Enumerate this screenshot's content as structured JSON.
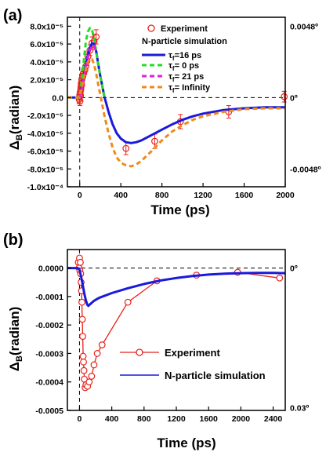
{
  "chart_data": [
    {
      "panel_label": "(a)",
      "type": "line",
      "xlabel": "Time (ps)",
      "ylabel": "Δ_B(radian)",
      "ylabel_main": "Δ",
      "ylabel_sub": "B",
      "ylabel_rest": "(radian)",
      "xlim": [
        -120,
        2000
      ],
      "ylim": [
        -0.0001,
        9e-05
      ],
      "x_ticks": [
        0,
        400,
        800,
        1200,
        1600,
        2000
      ],
      "x_tick_labels": [
        "0",
        "400",
        "800",
        "1200",
        "1600",
        "2000"
      ],
      "y_ticks": [
        8e-05,
        6e-05,
        4e-05,
        2e-05,
        0,
        -2e-05,
        -4e-05,
        -6e-05,
        -8e-05,
        -0.0001
      ],
      "y_tick_labels": [
        "8.0x10⁻⁵",
        "6.0x10⁻⁵",
        "4.0x10⁻⁵",
        "2.0x10⁻⁵",
        "0.0",
        "-2.0x10⁻⁵",
        "-4.0x10⁻⁵",
        "-6.0x10⁻⁵",
        "-8.0x10⁻⁵",
        "-1.0x10⁻⁴"
      ],
      "right_labels": [
        {
          "text": "0.0048º",
          "y": 8e-05
        },
        {
          "text": "0º",
          "y": 0
        },
        {
          "text": "-0.0048º",
          "y": -8e-05
        }
      ],
      "legend_title": "N-particle simulation",
      "legend_experiment": "Experiment",
      "series": [
        {
          "name": "Experiment",
          "kind": "points",
          "color": "#e8221c",
          "x": [
            -5,
            0,
            2,
            5,
            8,
            10,
            12,
            15,
            18,
            20,
            25,
            30,
            35,
            40,
            50,
            60,
            70,
            80,
            100,
            120,
            140,
            160,
            450,
            730,
            980,
            1450,
            1990
          ],
          "y": [
            -2e-06,
            3e-06,
            -4e-06,
            6e-06,
            2e-06,
            9e-06,
            1.2e-05,
            1.6e-05,
            1.4e-05,
            2e-05,
            2.2e-05,
            2.4e-05,
            2.7e-05,
            2.8e-05,
            3.1e-05,
            3.5e-05,
            4.1e-05,
            4.6e-05,
            5.3e-05,
            6.1e-05,
            6.3e-05,
            6.8e-05,
            -5.7e-05,
            -4.9e-05,
            -2.7e-05,
            -1.6e-05,
            1e-06
          ],
          "err": [
            5e-06,
            5e-06,
            5e-06,
            5e-06,
            5e-06,
            5e-06,
            5e-06,
            5e-06,
            5e-06,
            5e-06,
            5e-06,
            5e-06,
            5e-06,
            5e-06,
            5e-06,
            5e-06,
            5e-06,
            5e-06,
            6e-06,
            7e-06,
            7e-06,
            8e-06,
            7e-06,
            8e-06,
            8e-06,
            7e-06,
            6e-06
          ]
        },
        {
          "name": "τf=16 ps",
          "name_main": "τ",
          "name_sub": "f",
          "name_rest": "=16 ps",
          "kind": "line",
          "color": "#1a1adc",
          "dash": "",
          "x": [
            -120,
            0,
            20,
            40,
            60,
            80,
            100,
            120,
            140,
            160,
            180,
            200,
            240,
            280,
            320,
            360,
            400,
            450,
            500,
            550,
            600,
            700,
            800,
            900,
            1000,
            1100,
            1200,
            1400,
            1600,
            1800,
            2000
          ],
          "y": [
            0,
            0,
            1.2e-05,
            2.5e-05,
            3.7e-05,
            4.8e-05,
            5.6e-05,
            6.1e-05,
            6e-05,
            5.2e-05,
            3.8e-05,
            2.4e-05,
            1e-06,
            -1.6e-05,
            -3e-05,
            -4e-05,
            -4.6e-05,
            -5e-05,
            -5.1e-05,
            -5e-05,
            -4.8e-05,
            -4.2e-05,
            -3.6e-05,
            -3e-05,
            -2.5e-05,
            -2.1e-05,
            -1.8e-05,
            -1.4e-05,
            -1.2e-05,
            -1.1e-05,
            -1.1e-05
          ]
        },
        {
          "name": "τf= 0 ps",
          "name_main": "τ",
          "name_sub": "f",
          "name_rest": "= 0 ps",
          "kind": "line",
          "color": "#22dd22",
          "dash": "6,4",
          "x": [
            -120,
            0,
            20,
            40,
            60,
            80,
            100,
            120,
            140,
            160,
            180,
            200,
            240
          ],
          "y": [
            0,
            0,
            2e-05,
            4.2e-05,
            6.3e-05,
            7.4e-05,
            7.8e-05,
            7.6e-05,
            6.6e-05,
            5.2e-05,
            3.7e-05,
            2.4e-05,
            1e-06
          ]
        },
        {
          "name": "τf= 21 ps",
          "name_main": "τ",
          "name_sub": "f",
          "name_rest": "= 21 ps",
          "kind": "line",
          "color": "#e020e0",
          "dash": "6,4",
          "x": [
            0,
            20,
            40,
            60,
            80,
            100,
            120,
            140,
            160
          ],
          "y": [
            0,
            1e-05,
            2.2e-05,
            3.4e-05,
            4.5e-05,
            5.3e-05,
            5.8e-05,
            5.8e-05,
            5.1e-05
          ]
        },
        {
          "name": "τf= Infinity",
          "name_main": "τ",
          "name_sub": "f",
          "name_rest": "= Infinity",
          "kind": "line",
          "color": "#f08a1a",
          "dash": "6,4",
          "x": [
            -120,
            0,
            20,
            40,
            60,
            80,
            100,
            120,
            140,
            160,
            180,
            200,
            240,
            280,
            320,
            360,
            400,
            450,
            500,
            550,
            600,
            700,
            800,
            900,
            1000,
            1100,
            1200,
            1400,
            1600,
            1800,
            2000
          ],
          "y": [
            0,
            0,
            1.1e-05,
            2.2e-05,
            3.3e-05,
            4e-05,
            4.4e-05,
            4.3e-05,
            3.7e-05,
            2.7e-05,
            1.5e-05,
            3e-06,
            -2e-05,
            -4e-05,
            -5.6e-05,
            -6.7e-05,
            -7.3e-05,
            -7.6e-05,
            -7.7e-05,
            -7.5e-05,
            -7.1e-05,
            -6e-05,
            -4.8e-05,
            -3.8e-05,
            -3.1e-05,
            -2.5e-05,
            -2.1e-05,
            -1.6e-05,
            -1.3e-05,
            -1.2e-05,
            -1.2e-05
          ]
        }
      ]
    },
    {
      "panel_label": "(b)",
      "type": "line",
      "xlabel": "Time (ps)",
      "ylabel": "Δ_B(radian)",
      "ylabel_main": "Δ",
      "ylabel_sub": "B",
      "ylabel_rest": "(radian)",
      "xlim": [
        -150,
        2550
      ],
      "ylim": [
        -0.0005,
        6.5e-05
      ],
      "x_ticks": [
        0,
        400,
        800,
        1200,
        1600,
        2000,
        2400
      ],
      "x_tick_labels": [
        "0",
        "400",
        "800",
        "1200",
        "1600",
        "2000",
        "2400"
      ],
      "y_ticks": [
        0,
        -0.0001,
        -0.0002,
        -0.0003,
        -0.0004,
        -0.0005
      ],
      "y_tick_labels": [
        "0.0000",
        "-0.0001",
        "-0.0002",
        "-0.0003",
        "-0.0004",
        "-0.0005"
      ],
      "right_labels": [
        {
          "text": "0º",
          "y": 0
        },
        {
          "text": "0.03º",
          "y": -0.00049
        }
      ],
      "series": [
        {
          "name": "Experiment",
          "kind": "points-line",
          "color": "#e8221c",
          "x": [
            -15,
            -5,
            0,
            5,
            10,
            15,
            20,
            25,
            30,
            35,
            40,
            45,
            50,
            55,
            60,
            70,
            80,
            100,
            120,
            150,
            180,
            220,
            280,
            600,
            960,
            1450,
            1960,
            2480
          ],
          "y": [
            2e-05,
            0,
            3.5e-05,
            -1e-05,
            2e-05,
            -2e-05,
            -5e-05,
            -8e-05,
            -0.00012,
            -0.00018,
            -0.00024,
            -0.00031,
            -0.00033,
            -0.00036,
            -0.00039,
            -0.00042,
            -0.00041,
            -0.000415,
            -0.0004,
            -0.00038,
            -0.00034,
            -0.0003,
            -0.00027,
            -0.00012,
            -4.5e-05,
            -2.5e-05,
            -1.5e-05,
            -3.5e-05
          ]
        },
        {
          "name": "N-particle simulation",
          "kind": "line",
          "color": "#1a1adc",
          "dash": "",
          "x": [
            -150,
            -20,
            0,
            20,
            40,
            60,
            80,
            100,
            110,
            120,
            140,
            180,
            240,
            400,
            600,
            800,
            1000,
            1200,
            1400,
            1600,
            1800,
            2000,
            2200,
            2400,
            2550
          ],
          "y": [
            0,
            0,
            -5e-06,
            -3e-05,
            -6e-05,
            -9e-05,
            -0.000115,
            -0.00013,
            -0.000133,
            -0.00013,
            -0.000125,
            -0.000115,
            -0.000105,
            -8.8e-05,
            -7.1e-05,
            -5.6e-05,
            -4.4e-05,
            -3.5e-05,
            -2.8e-05,
            -2.3e-05,
            -2e-05,
            -1.8e-05,
            -1.7e-05,
            -1.7e-05,
            -1.8e-05
          ]
        }
      ]
    }
  ]
}
